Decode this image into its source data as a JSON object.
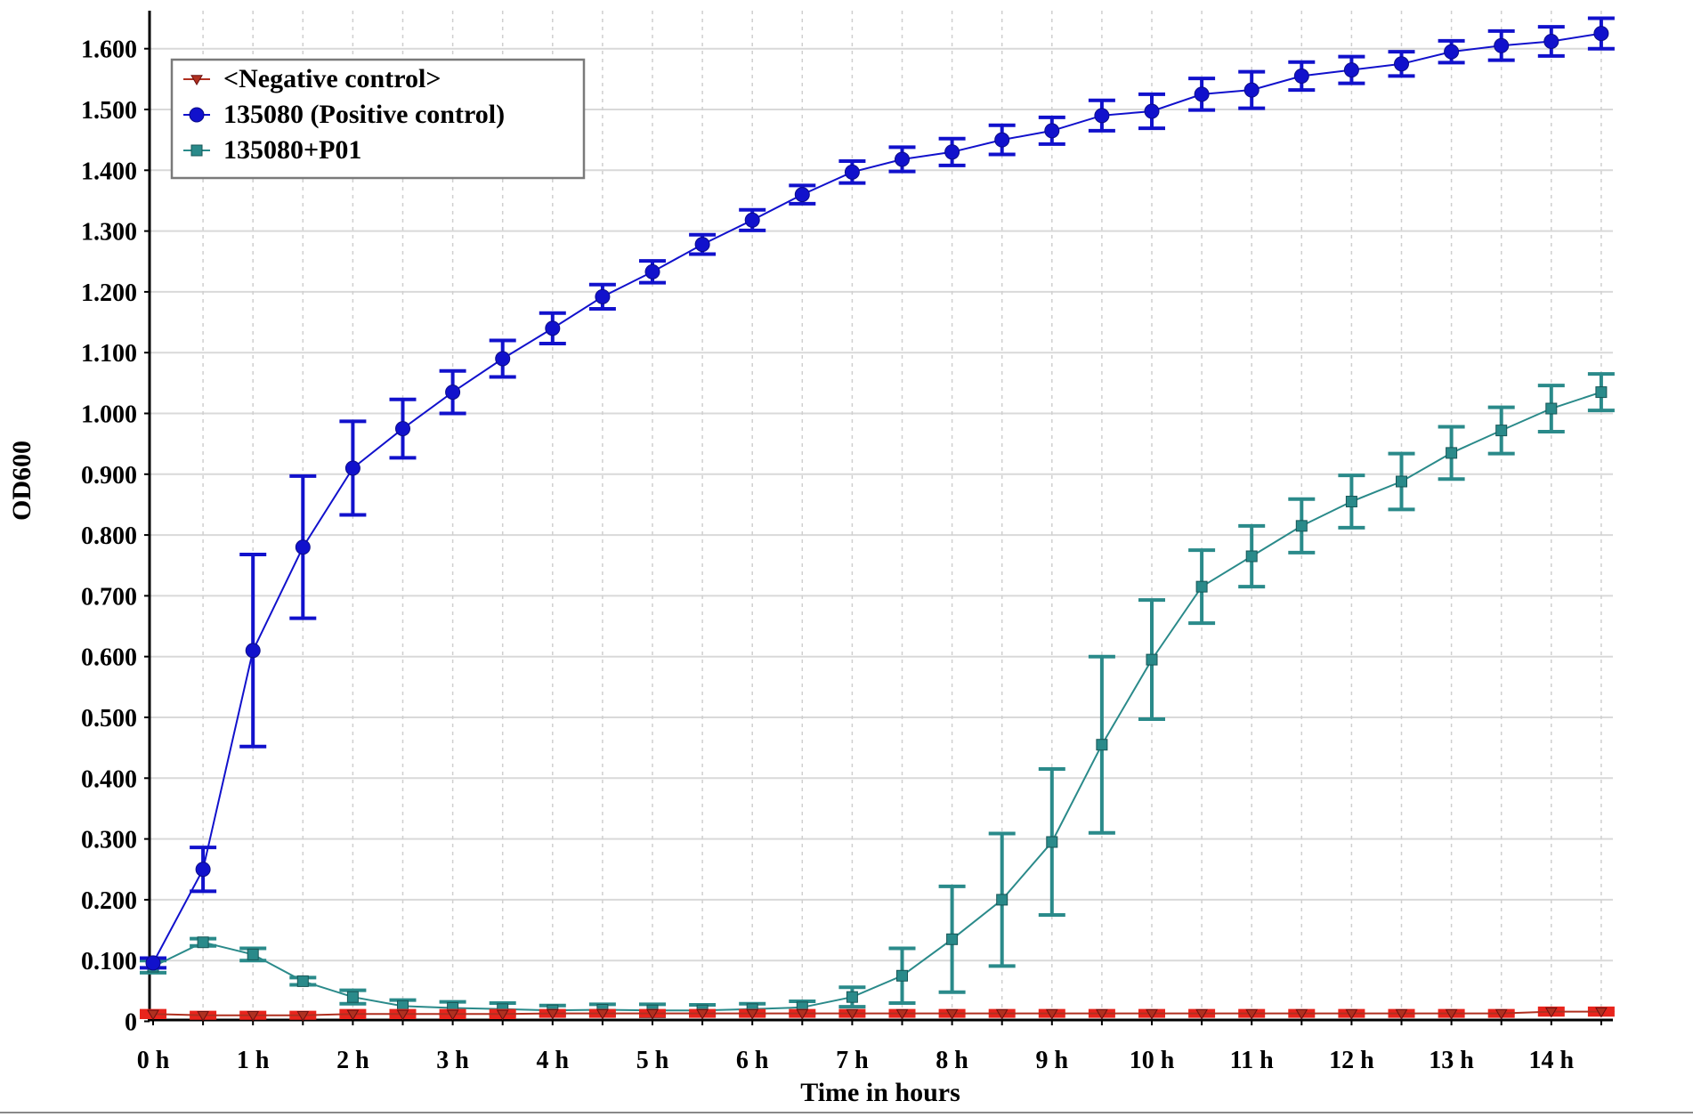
{
  "chart_data": {
    "type": "line",
    "title": "",
    "xlabel": "Time in hours",
    "ylabel": "OD600",
    "xlim": [
      0,
      14.6
    ],
    "ylim": [
      0,
      1.66
    ],
    "x_ticks": [
      {
        "value": 0,
        "label": "0 h"
      },
      {
        "value": 1,
        "label": "1 h"
      },
      {
        "value": 2,
        "label": "2 h"
      },
      {
        "value": 3,
        "label": "3 h"
      },
      {
        "value": 4,
        "label": "4 h"
      },
      {
        "value": 5,
        "label": "5 h"
      },
      {
        "value": 6,
        "label": "6 h"
      },
      {
        "value": 7,
        "label": "7 h"
      },
      {
        "value": 8,
        "label": "8 h"
      },
      {
        "value": 9,
        "label": "9 h"
      },
      {
        "value": 10,
        "label": "10 h"
      },
      {
        "value": 11,
        "label": "11 h"
      },
      {
        "value": 12,
        "label": "12 h"
      },
      {
        "value": 13,
        "label": "13 h"
      },
      {
        "value": 14,
        "label": "14 h"
      }
    ],
    "y_ticks": [
      {
        "value": 0,
        "label": "0"
      },
      {
        "value": 0.1,
        "label": "0.100"
      },
      {
        "value": 0.2,
        "label": "0.200"
      },
      {
        "value": 0.3,
        "label": "0.300"
      },
      {
        "value": 0.4,
        "label": "0.400"
      },
      {
        "value": 0.5,
        "label": "0.500"
      },
      {
        "value": 0.6,
        "label": "0.600"
      },
      {
        "value": 0.7,
        "label": "0.700"
      },
      {
        "value": 0.8,
        "label": "0.800"
      },
      {
        "value": 0.9,
        "label": "0.900"
      },
      {
        "value": 1.0,
        "label": "1.000"
      },
      {
        "value": 1.1,
        "label": "1.100"
      },
      {
        "value": 1.2,
        "label": "1.200"
      },
      {
        "value": 1.3,
        "label": "1.300"
      },
      {
        "value": 1.4,
        "label": "1.400"
      },
      {
        "value": 1.5,
        "label": "1.500"
      },
      {
        "value": 1.6,
        "label": "1.600"
      }
    ],
    "grid": true,
    "legend_position": "top-left",
    "x": [
      0,
      0.5,
      1,
      1.5,
      2,
      2.5,
      3,
      3.5,
      4,
      4.5,
      5,
      5.5,
      6,
      6.5,
      7,
      7.5,
      8,
      8.5,
      9,
      9.5,
      10,
      10.5,
      11,
      11.5,
      12,
      12.5,
      13,
      13.5,
      14,
      14.5
    ],
    "series": [
      {
        "name": "<Negative control>",
        "color": "#b03020",
        "error_color": "#e8241c",
        "marker": "triangle-down",
        "values": [
          0.012,
          0.01,
          0.01,
          0.01,
          0.012,
          0.012,
          0.012,
          0.012,
          0.013,
          0.013,
          0.013,
          0.013,
          0.013,
          0.013,
          0.013,
          0.013,
          0.013,
          0.013,
          0.013,
          0.013,
          0.013,
          0.013,
          0.013,
          0.013,
          0.013,
          0.013,
          0.013,
          0.013,
          0.016,
          0.016
        ],
        "errors": [
          0.004,
          0.003,
          0.003,
          0.003,
          0.004,
          0.004,
          0.004,
          0.004,
          0.003,
          0.003,
          0.003,
          0.003,
          0.003,
          0.003,
          0.003,
          0.003,
          0.003,
          0.003,
          0.003,
          0.003,
          0.003,
          0.003,
          0.003,
          0.003,
          0.003,
          0.003,
          0.003,
          0.003,
          0.004,
          0.004
        ]
      },
      {
        "name": "135080 (Positive control)",
        "color": "#1111cc",
        "error_color": "#1111cc",
        "marker": "circle",
        "values": [
          0.096,
          0.25,
          0.61,
          0.78,
          0.91,
          0.975,
          1.035,
          1.09,
          1.14,
          1.192,
          1.233,
          1.278,
          1.318,
          1.36,
          1.397,
          1.418,
          1.43,
          1.45,
          1.465,
          1.49,
          1.497,
          1.525,
          1.532,
          1.555,
          1.565,
          1.575,
          1.595,
          1.605,
          1.612,
          1.625
        ],
        "errors": [
          0.008,
          0.036,
          0.158,
          0.117,
          0.077,
          0.048,
          0.035,
          0.03,
          0.025,
          0.02,
          0.018,
          0.016,
          0.017,
          0.015,
          0.018,
          0.02,
          0.022,
          0.024,
          0.022,
          0.025,
          0.028,
          0.026,
          0.03,
          0.023,
          0.022,
          0.02,
          0.018,
          0.024,
          0.024,
          0.025
        ]
      },
      {
        "name": "135080+P01",
        "color": "#2a8a8a",
        "error_color": "#2a8a8a",
        "marker": "square",
        "values": [
          0.09,
          0.13,
          0.11,
          0.066,
          0.04,
          0.025,
          0.022,
          0.02,
          0.018,
          0.019,
          0.018,
          0.018,
          0.02,
          0.023,
          0.04,
          0.075,
          0.135,
          0.2,
          0.295,
          0.455,
          0.595,
          0.715,
          0.765,
          0.815,
          0.855,
          0.888,
          0.935,
          0.972,
          1.008,
          1.035
        ],
        "errors": [
          0.01,
          0.006,
          0.01,
          0.006,
          0.011,
          0.01,
          0.01,
          0.01,
          0.008,
          0.009,
          0.01,
          0.009,
          0.009,
          0.01,
          0.016,
          0.045,
          0.087,
          0.109,
          0.12,
          0.145,
          0.098,
          0.06,
          0.05,
          0.044,
          0.043,
          0.046,
          0.043,
          0.038,
          0.038,
          0.03
        ]
      }
    ]
  }
}
